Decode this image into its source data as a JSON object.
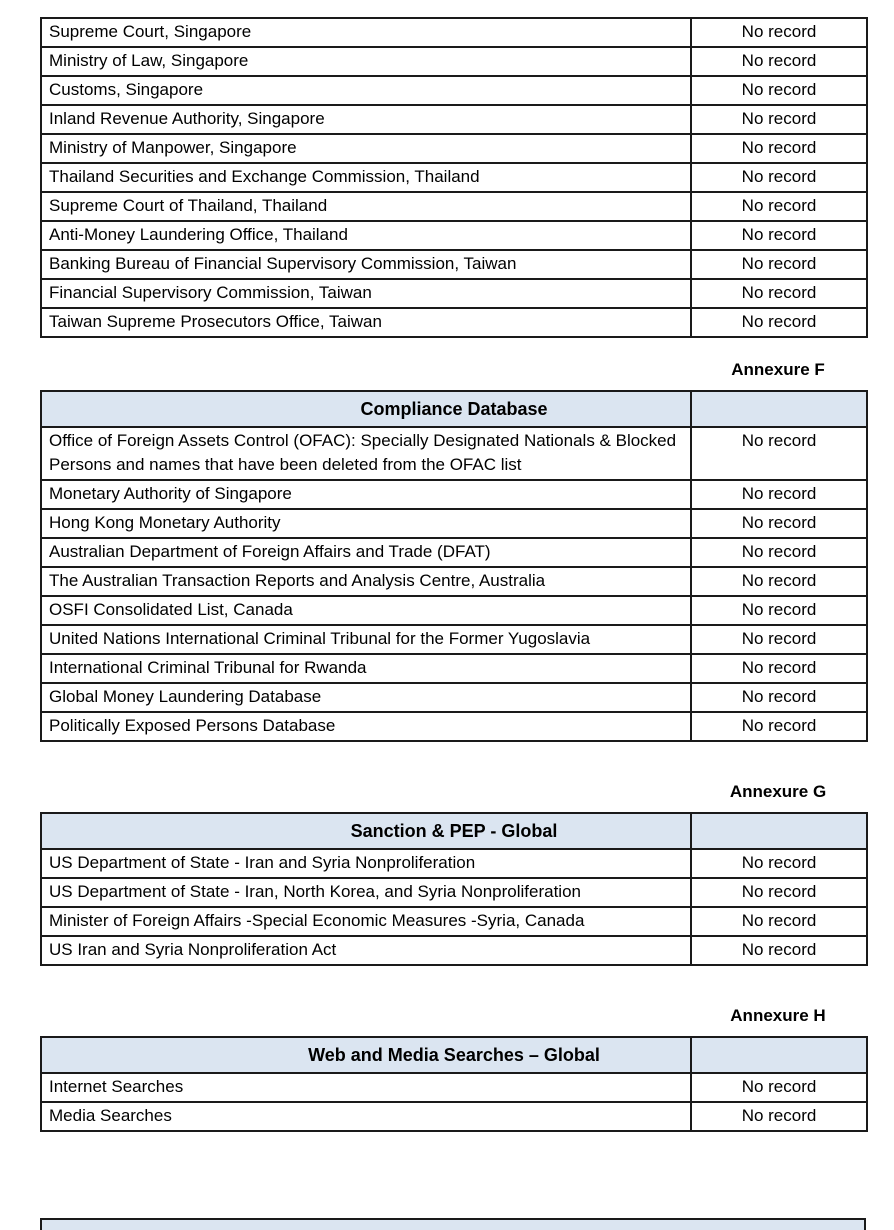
{
  "document": {
    "colors": {
      "table_header_bg": "#dbe5f1",
      "border": "#1a1a1a"
    },
    "result_tables": [
      {
        "annexure": "",
        "title": "",
        "rows": [
          {
            "source": "Supreme Court, Singapore",
            "result": "No record"
          },
          {
            "source": "Ministry of Law, Singapore",
            "result": "No record"
          },
          {
            "source": "Customs, Singapore",
            "result": "No record"
          },
          {
            "source": "Inland Revenue Authority, Singapore",
            "result": "No record"
          },
          {
            "source": "Ministry of Manpower, Singapore",
            "result": "No record"
          },
          {
            "source": "Thailand Securities and Exchange Commission, Thailand",
            "result": "No record"
          },
          {
            "source": "Supreme Court of Thailand, Thailand",
            "result": "No record"
          },
          {
            "source": "Anti-Money Laundering Office, Thailand",
            "result": "No record"
          },
          {
            "source": "Banking Bureau of Financial Supervisory Commission, Taiwan",
            "result": "No record"
          },
          {
            "source": "Financial Supervisory Commission, Taiwan",
            "result": "No record"
          },
          {
            "source": "Taiwan Supreme Prosecutors Office, Taiwan",
            "result": "No record"
          }
        ]
      },
      {
        "annexure": "Annexure F",
        "title": "Compliance Database",
        "rows": [
          {
            "source": "Office of Foreign Assets Control (OFAC): Specially Designated Nationals & Blocked Persons and names that have been deleted from the OFAC list",
            "result": "No record"
          },
          {
            "source": "Monetary Authority of Singapore",
            "result": "No record"
          },
          {
            "source": "Hong Kong Monetary Authority",
            "result": "No record"
          },
          {
            "source": "Australian Department of Foreign Affairs and Trade (DFAT)",
            "result": "No record"
          },
          {
            "source": "The Australian Transaction Reports and Analysis Centre, Australia",
            "result": "No record"
          },
          {
            "source": "OSFI Consolidated List, Canada",
            "result": "No record"
          },
          {
            "source": "United Nations International Criminal Tribunal for the Former Yugoslavia",
            "result": "No record"
          },
          {
            "source": "International Criminal Tribunal for Rwanda",
            "result": "No record"
          },
          {
            "source": "Global Money Laundering Database",
            "result": "No record"
          },
          {
            "source": "Politically Exposed Persons Database",
            "result": "No record"
          }
        ]
      },
      {
        "annexure": "Annexure G",
        "title": "Sanction & PEP - Global",
        "rows": [
          {
            "source": "US Department of State - Iran and Syria Nonproliferation",
            "result": "No record"
          },
          {
            "source": "US Department of State - Iran, North Korea, and Syria Nonproliferation",
            "result": "No record"
          },
          {
            "source": "Minister of Foreign Affairs -Special Economic Measures -Syria, Canada",
            "result": "No record"
          },
          {
            "source": "US Iran and Syria Nonproliferation Act",
            "result": "No record"
          }
        ]
      },
      {
        "annexure": "Annexure H",
        "title": "Web and Media Searches – Global",
        "rows": [
          {
            "source": "Internet Searches",
            "result": "No record"
          },
          {
            "source": "Media Searches",
            "result": "No record"
          }
        ]
      }
    ]
  }
}
